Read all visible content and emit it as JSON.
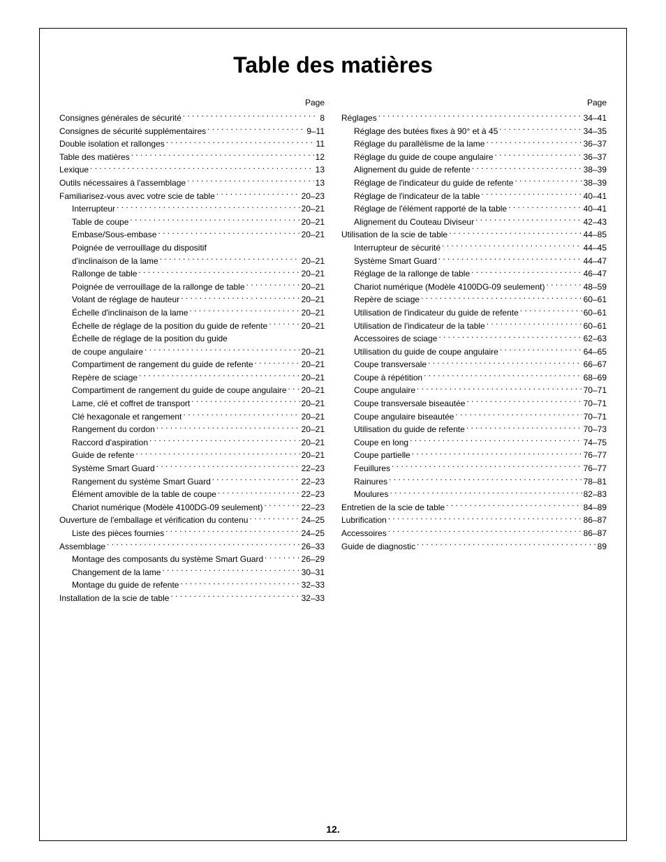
{
  "title": "Table des matières",
  "page_header": "Page",
  "page_number": "12.",
  "left_column": [
    {
      "label": "Consignes générales de sécurité",
      "page": "8",
      "indent": 0
    },
    {
      "label": "Consignes de sécurité supplémentaires",
      "page": "9–11",
      "indent": 0
    },
    {
      "label": "Double isolation et rallonges",
      "page": "11",
      "indent": 0
    },
    {
      "label": "Table des matières",
      "page": "12",
      "indent": 0
    },
    {
      "label": "Lexique",
      "page": "13",
      "indent": 0
    },
    {
      "label": "Outils nécessaires à l'assemblage",
      "page": "13",
      "indent": 0
    },
    {
      "label": "Familiarisez-vous avec votre scie de table",
      "page": "20–23",
      "indent": 0
    },
    {
      "label": "Interrupteur",
      "page": "20–21",
      "indent": 1
    },
    {
      "label": "Table de coupe",
      "page": "20–21",
      "indent": 1
    },
    {
      "label": "Embase/Sous-embase",
      "page": "20–21",
      "indent": 1
    },
    {
      "label": "Poignée de verrouillage du dispositif",
      "page": "",
      "indent": 1,
      "no_dots": true
    },
    {
      "label": "d'inclinaison de la lame",
      "page": "20–21",
      "indent": 1
    },
    {
      "label": "Rallonge de table",
      "page": "20–21",
      "indent": 1
    },
    {
      "label": "Poignée de verrouillage de la rallonge de table",
      "page": "20–21",
      "indent": 1
    },
    {
      "label": "Volant de réglage de hauteur",
      "page": "20–21",
      "indent": 1
    },
    {
      "label": "Échelle d'inclinaison de la lame",
      "page": "20–21",
      "indent": 1
    },
    {
      "label": "Échelle de réglage de la position du guide de refente",
      "page": "20–21",
      "indent": 1
    },
    {
      "label": "Échelle de réglage de la position du guide",
      "page": "",
      "indent": 1,
      "no_dots": true
    },
    {
      "label": "de coupe angulaire",
      "page": "20–21",
      "indent": 1
    },
    {
      "label": "Compartiment de rangement du guide de refente",
      "page": "20–21",
      "indent": 1
    },
    {
      "label": "Repère de sciage",
      "page": "20–21",
      "indent": 1
    },
    {
      "label": "Compartiment de rangement du guide de coupe angulaire",
      "page": "20–21",
      "indent": 1
    },
    {
      "label": "Lame, clé et coffret de transport",
      "page": "20–21",
      "indent": 1
    },
    {
      "label": "Clé hexagonale et rangement",
      "page": "20–21",
      "indent": 1
    },
    {
      "label": "Rangement du cordon",
      "page": "20–21",
      "indent": 1
    },
    {
      "label": "Raccord d'aspiration",
      "page": "20–21",
      "indent": 1
    },
    {
      "label": "Guide de refente",
      "page": "20–21",
      "indent": 1
    },
    {
      "label": "Système Smart Guard",
      "page": "22–23",
      "indent": 1
    },
    {
      "label": "Rangement du système Smart Guard",
      "page": "22–23",
      "indent": 1
    },
    {
      "label": "Élément amovible de la table de coupe",
      "page": "22–23",
      "indent": 1
    },
    {
      "label": "Chariot numérique (Modèle 4100DG-09 seulement)",
      "page": "22–23",
      "indent": 1
    },
    {
      "label": "Ouverture de l'emballage et vérification du contenu",
      "page": "24–25",
      "indent": 0
    },
    {
      "label": "Liste des pièces fournies",
      "page": "24–25",
      "indent": 1
    },
    {
      "label": "Assemblage",
      "page": "26–33",
      "indent": 0
    },
    {
      "label": "Montage des composants du système Smart Guard",
      "page": "26–29",
      "indent": 1
    },
    {
      "label": "Changement de la lame",
      "page": "30–31",
      "indent": 1
    },
    {
      "label": "Montage du guide de refente",
      "page": "32–33",
      "indent": 1
    },
    {
      "label": "Installation de la scie de table",
      "page": "32–33",
      "indent": 0
    }
  ],
  "right_column": [
    {
      "label": "Réglages",
      "page": "34–41",
      "indent": 0
    },
    {
      "label": "Réglage des butées fixes à 90° et à 45",
      "page": "34–35",
      "indent": 1
    },
    {
      "label": "Réglage du parallélisme de la lame",
      "page": "36–37",
      "indent": 1
    },
    {
      "label": "Réglage du guide de coupe angulaire",
      "page": "36–37",
      "indent": 1
    },
    {
      "label": "Alignement du guide de refente",
      "page": "38–39",
      "indent": 1
    },
    {
      "label": "Réglage de l'indicateur du guide de refente",
      "page": "38–39",
      "indent": 1
    },
    {
      "label": "Réglage de l'indicateur de la table",
      "page": "40–41",
      "indent": 1
    },
    {
      "label": "Réglage de l'élément rapporté de la table",
      "page": "40–41",
      "indent": 1
    },
    {
      "label": "Alignement du Couteau Diviseur",
      "page": "42–43",
      "indent": 1
    },
    {
      "label": "Utilisation de la scie de table",
      "page": "44–85",
      "indent": 0
    },
    {
      "label": "Interrupteur de sécurité",
      "page": "44–45",
      "indent": 1
    },
    {
      "label": "Système Smart Guard",
      "page": "44–47",
      "indent": 1
    },
    {
      "label": "Réglage de la rallonge de table",
      "page": "46–47",
      "indent": 1
    },
    {
      "label": "Chariot numérique (Modèle 4100DG-09 seulement)",
      "page": "48–59",
      "indent": 1
    },
    {
      "label": "Repère de sciage",
      "page": "60–61",
      "indent": 1
    },
    {
      "label": "Utilisation de l'indicateur du guide de refente",
      "page": "60–61",
      "indent": 1
    },
    {
      "label": "Utilisation de l'indicateur de la table",
      "page": "60–61",
      "indent": 1
    },
    {
      "label": "Accessoires de sciage",
      "page": "62–63",
      "indent": 1
    },
    {
      "label": "Utilisation du guide de coupe angulaire",
      "page": "64–65",
      "indent": 1
    },
    {
      "label": "Coupe transversale",
      "page": "66–67",
      "indent": 1
    },
    {
      "label": "Coupe à répétition",
      "page": "68–69",
      "indent": 1
    },
    {
      "label": "Coupe angulaire",
      "page": "70–71",
      "indent": 1
    },
    {
      "label": "Coupe transversale biseautée",
      "page": "70–71",
      "indent": 1
    },
    {
      "label": "Coupe angulaire biseautée",
      "page": "70–71",
      "indent": 1
    },
    {
      "label": "Utilisation du guide de refente",
      "page": "70–73",
      "indent": 1
    },
    {
      "label": "Coupe en long",
      "page": "74–75",
      "indent": 1
    },
    {
      "label": "Coupe partielle",
      "page": "76–77",
      "indent": 1
    },
    {
      "label": "Feuillures",
      "page": "76–77",
      "indent": 1
    },
    {
      "label": "Rainures",
      "page": "78–81",
      "indent": 1
    },
    {
      "label": "Moulures",
      "page": "82–83",
      "indent": 1
    },
    {
      "label": "Entretien de la scie de table",
      "page": "84–89",
      "indent": 0
    },
    {
      "label": "Lubrification",
      "page": "86–87",
      "indent": 0
    },
    {
      "label": "Accessoires",
      "page": "86–87",
      "indent": 0
    },
    {
      "label": "Guide de diagnostic",
      "page": "89",
      "indent": 0
    }
  ]
}
